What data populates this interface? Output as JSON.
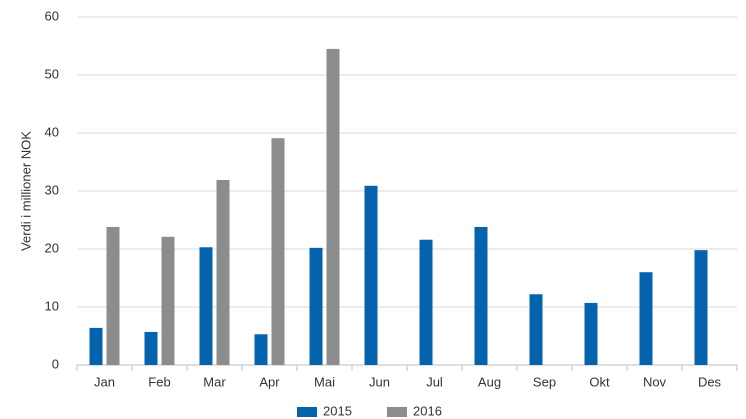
{
  "chart_data": {
    "type": "bar",
    "y_label": "Verdi i millioner NOK",
    "categories": [
      "Jan",
      "Feb",
      "Mar",
      "Apr",
      "Mai",
      "Jun",
      "Jul",
      "Aug",
      "Sep",
      "Okt",
      "Nov",
      "Des"
    ],
    "series": [
      {
        "name": "2015",
        "color": "#0563ad",
        "values": [
          6.4,
          5.7,
          20.3,
          5.3,
          20.2,
          30.9,
          21.6,
          23.8,
          12.2,
          10.7,
          16.0,
          19.8
        ]
      },
      {
        "name": "2016",
        "color": "#8c8c8c",
        "values": [
          23.8,
          22.1,
          31.9,
          39.1,
          54.5,
          null,
          null,
          null,
          null,
          null,
          null,
          null
        ]
      }
    ],
    "ylim": [
      0,
      60
    ],
    "yticks": [
      0,
      10,
      20,
      30,
      40,
      50,
      60
    ],
    "grid": true
  }
}
